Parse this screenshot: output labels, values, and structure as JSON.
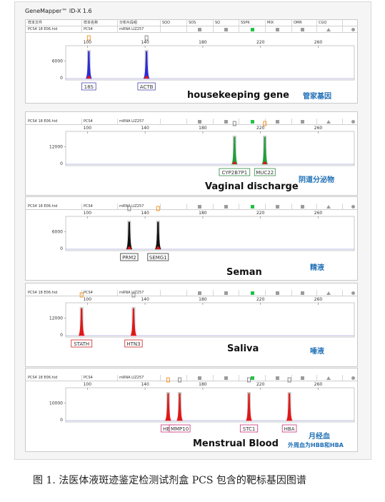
{
  "app": {
    "title": "GeneMapper™ ID-X 1.6"
  },
  "columns": {
    "sample_file": "样本文件",
    "sample_name": "样本名称",
    "panel": "分析片段组",
    "sqo": "SQO",
    "sos": "SOS",
    "sq": "SQ",
    "sspk": "SSPK",
    "mix": "MIX",
    "omr": "OMR",
    "cgq": "CGQ"
  },
  "row": {
    "file": "PCS4 18 E06.hid",
    "name": "PCS4",
    "size_std": "mRNA LIZ257"
  },
  "colors": {
    "blue_peak": "#2b2bd6",
    "red_peak": "#e01818",
    "black_peak": "#111111",
    "green_peak": "#1f9e3a",
    "orange_marker": "#f39a2c",
    "caption_cn": "#1f6fb5",
    "label_blue": "#4848b0",
    "label_green": "#2e8a3e",
    "label_black": "#333333",
    "label_red": "#d02020",
    "label_pink": "#c8307a"
  },
  "panels": [
    {
      "id": "housekeeping",
      "title": "housekeeping gene",
      "title_cn": "管家基因",
      "title_cn2": "",
      "ytick": "6000",
      "yzero": "0",
      "xticks": [
        "100",
        "140",
        "180",
        "220",
        "260"
      ],
      "peaks": [
        {
          "label": "18S",
          "x": 101,
          "color": "blue",
          "marker": "orange",
          "label_color": "blue"
        },
        {
          "label": "ACTB",
          "x": 141,
          "color": "blue",
          "marker": "gray",
          "label_color": "blue"
        }
      ]
    },
    {
      "id": "vaginal",
      "title": "Vaginal discharge",
      "title_cn": "阴道分泌物",
      "title_cn2": "",
      "ytick": "12000",
      "yzero": "0",
      "xticks": [
        "100",
        "140",
        "180",
        "220",
        "260"
      ],
      "peaks": [
        {
          "label": "CYP2B7P1",
          "x": 202,
          "color": "green",
          "marker": "gray",
          "label_color": "green"
        },
        {
          "label": "MUC22",
          "x": 223,
          "color": "green",
          "marker": "orange",
          "label_color": "green"
        }
      ]
    },
    {
      "id": "semen",
      "title": "Seman",
      "title_cn": "精液",
      "title_cn2": "",
      "ytick": "6000",
      "yzero": "0",
      "xticks": [
        "100",
        "140",
        "180",
        "220",
        "260"
      ],
      "peaks": [
        {
          "label": "PRM2",
          "x": 129,
          "color": "black",
          "marker": "gray",
          "label_color": "black"
        },
        {
          "label": "SEMG1",
          "x": 149,
          "color": "black",
          "marker": "orange",
          "label_color": "black"
        }
      ]
    },
    {
      "id": "saliva",
      "title": "Saliva",
      "title_cn": "唾液",
      "title_cn2": "",
      "ytick": "12000",
      "yzero": "0",
      "xticks": [
        "100",
        "140",
        "180",
        "220",
        "260"
      ],
      "peaks": [
        {
          "label": "STATH",
          "x": 96,
          "color": "red",
          "marker": "orange",
          "label_color": "red"
        },
        {
          "label": "HTN3",
          "x": 132,
          "color": "red",
          "marker": "gray",
          "label_color": "red"
        }
      ]
    },
    {
      "id": "menstrual",
      "title": "Menstrual Blood",
      "title_cn": "月经血",
      "title_cn2": "外周血为HBB和HBA",
      "ytick": "10000",
      "yzero": "0",
      "xticks": [
        "100",
        "140",
        "180",
        "220",
        "260"
      ],
      "peaks": [
        {
          "label": "HBB",
          "x": 156,
          "color": "red",
          "marker": "orange",
          "label_color": "pink"
        },
        {
          "label": "MMP10",
          "x": 164,
          "color": "red",
          "marker": "gray",
          "label_color": "pink"
        },
        {
          "label": "STC1",
          "x": 212,
          "color": "red",
          "marker": "gray",
          "label_color": "pink"
        },
        {
          "label": "HBA",
          "x": 240,
          "color": "red",
          "marker": "gray",
          "label_color": "pink"
        }
      ]
    }
  ],
  "figure_caption": "图 1. 法医体液斑迹鉴定检测试剂盒 PCS 包含的靶标基因图谱"
}
